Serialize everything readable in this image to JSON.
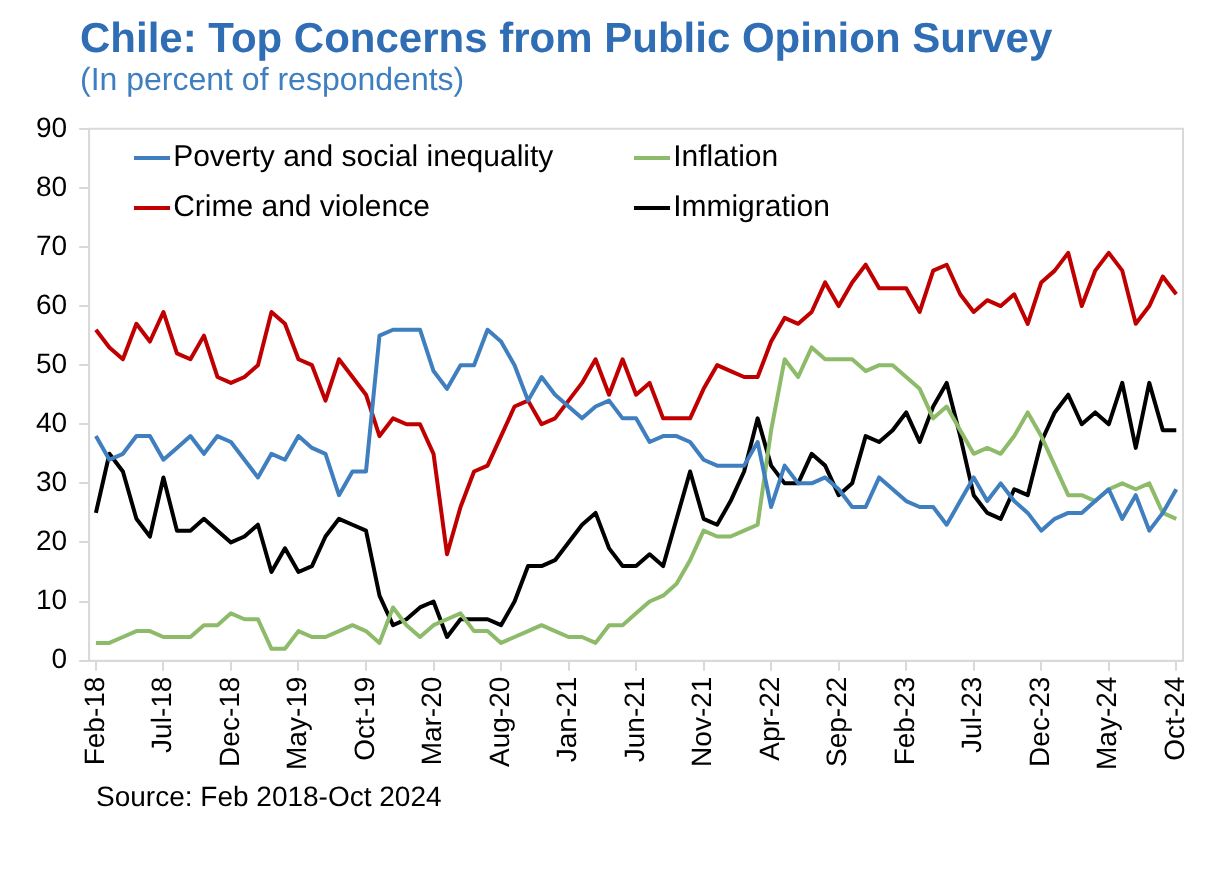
{
  "chart_data": {
    "type": "line",
    "title": "Chile: Top Concerns from Public Opinion Survey",
    "subtitle": "(In percent of respondents)",
    "categories": [
      "Feb-18",
      null,
      null,
      null,
      null,
      "Jul-18",
      null,
      null,
      null,
      null,
      "Dec-18",
      null,
      null,
      null,
      null,
      "May-19",
      null,
      null,
      null,
      null,
      "Oct-19",
      null,
      null,
      null,
      null,
      "Mar-20",
      null,
      null,
      null,
      null,
      "Aug-20",
      null,
      null,
      null,
      null,
      "Jan-21",
      null,
      null,
      null,
      null,
      "Jun-21",
      null,
      null,
      null,
      null,
      "Nov-21",
      null,
      null,
      null,
      null,
      "Apr-22",
      null,
      null,
      null,
      null,
      "Sep-22",
      null,
      null,
      null,
      null,
      "Feb-23",
      null,
      null,
      null,
      null,
      "Jul-23",
      null,
      null,
      null,
      null,
      "Dec-23",
      null,
      null,
      null,
      null,
      "May-24",
      null,
      null,
      null,
      null,
      "Oct-24"
    ],
    "series": [
      {
        "name": "Poverty and social inequality",
        "color": "#3f7fbf",
        "values": [
          38,
          34,
          35,
          38,
          38,
          34,
          36,
          38,
          35,
          38,
          37,
          34,
          31,
          35,
          34,
          38,
          36,
          35,
          28,
          32,
          32,
          55,
          56,
          56,
          56,
          49,
          46,
          50,
          50,
          56,
          54,
          50,
          44,
          48,
          45,
          43,
          41,
          43,
          44,
          41,
          41,
          37,
          38,
          38,
          37,
          34,
          33,
          33,
          33,
          37,
          26,
          33,
          30,
          30,
          31,
          29,
          26,
          26,
          31,
          29,
          27,
          26,
          26,
          23,
          27,
          31,
          27,
          30,
          27,
          25,
          22,
          24,
          25,
          25,
          27,
          29,
          24,
          28,
          22,
          25,
          29
        ]
      },
      {
        "name": "Inflation",
        "color": "#8dbb6a",
        "values": [
          3,
          3,
          4,
          5,
          5,
          4,
          4,
          4,
          6,
          6,
          8,
          7,
          7,
          2,
          2,
          5,
          4,
          4,
          5,
          6,
          5,
          3,
          9,
          6,
          4,
          6,
          7,
          8,
          5,
          5,
          3,
          4,
          5,
          6,
          5,
          4,
          4,
          3,
          6,
          6,
          8,
          10,
          11,
          13,
          17,
          22,
          21,
          21,
          22,
          23,
          39,
          51,
          48,
          53,
          51,
          51,
          51,
          49,
          50,
          50,
          48,
          46,
          41,
          43,
          39,
          35,
          36,
          35,
          38,
          42,
          38,
          33,
          28,
          28,
          27,
          29,
          30,
          29,
          30,
          25,
          24
        ]
      },
      {
        "name": "Crime and violence",
        "color": "#c00000",
        "values": [
          56,
          53,
          51,
          57,
          54,
          59,
          52,
          51,
          55,
          48,
          47,
          48,
          50,
          59,
          57,
          51,
          50,
          44,
          51,
          48,
          45,
          38,
          41,
          40,
          40,
          35,
          18,
          26,
          32,
          33,
          38,
          43,
          44,
          40,
          41,
          44,
          47,
          51,
          45,
          51,
          45,
          47,
          41,
          41,
          41,
          46,
          50,
          49,
          48,
          48,
          54,
          58,
          57,
          59,
          64,
          60,
          64,
          67,
          63,
          63,
          63,
          59,
          66,
          67,
          62,
          59,
          61,
          60,
          62,
          57,
          64,
          66,
          69,
          60,
          66,
          69,
          66,
          57,
          60,
          65,
          62
        ]
      },
      {
        "name": "Immigration",
        "color": "#000000",
        "values": [
          25,
          35,
          32,
          24,
          21,
          31,
          22,
          22,
          24,
          22,
          20,
          21,
          23,
          15,
          19,
          15,
          16,
          21,
          24,
          23,
          22,
          11,
          6,
          7,
          9,
          10,
          4,
          7,
          7,
          7,
          6,
          10,
          16,
          16,
          17,
          20,
          23,
          25,
          19,
          16,
          16,
          18,
          16,
          24,
          32,
          24,
          23,
          27,
          32,
          41,
          33,
          30,
          30,
          35,
          33,
          28,
          30,
          38,
          37,
          39,
          42,
          37,
          43,
          47,
          38,
          28,
          25,
          24,
          29,
          28,
          37,
          42,
          45,
          40,
          42,
          40,
          47,
          36,
          47,
          39,
          39
        ]
      }
    ],
    "ylim": [
      0,
      90
    ],
    "yticks": [
      0,
      10,
      20,
      30,
      40,
      50,
      60,
      70,
      80,
      90
    ],
    "grid": false,
    "legend": "top",
    "marker": "none",
    "line_style": "solid",
    "annotations": [
      "Source: Feb 2018-Oct 2024"
    ]
  }
}
